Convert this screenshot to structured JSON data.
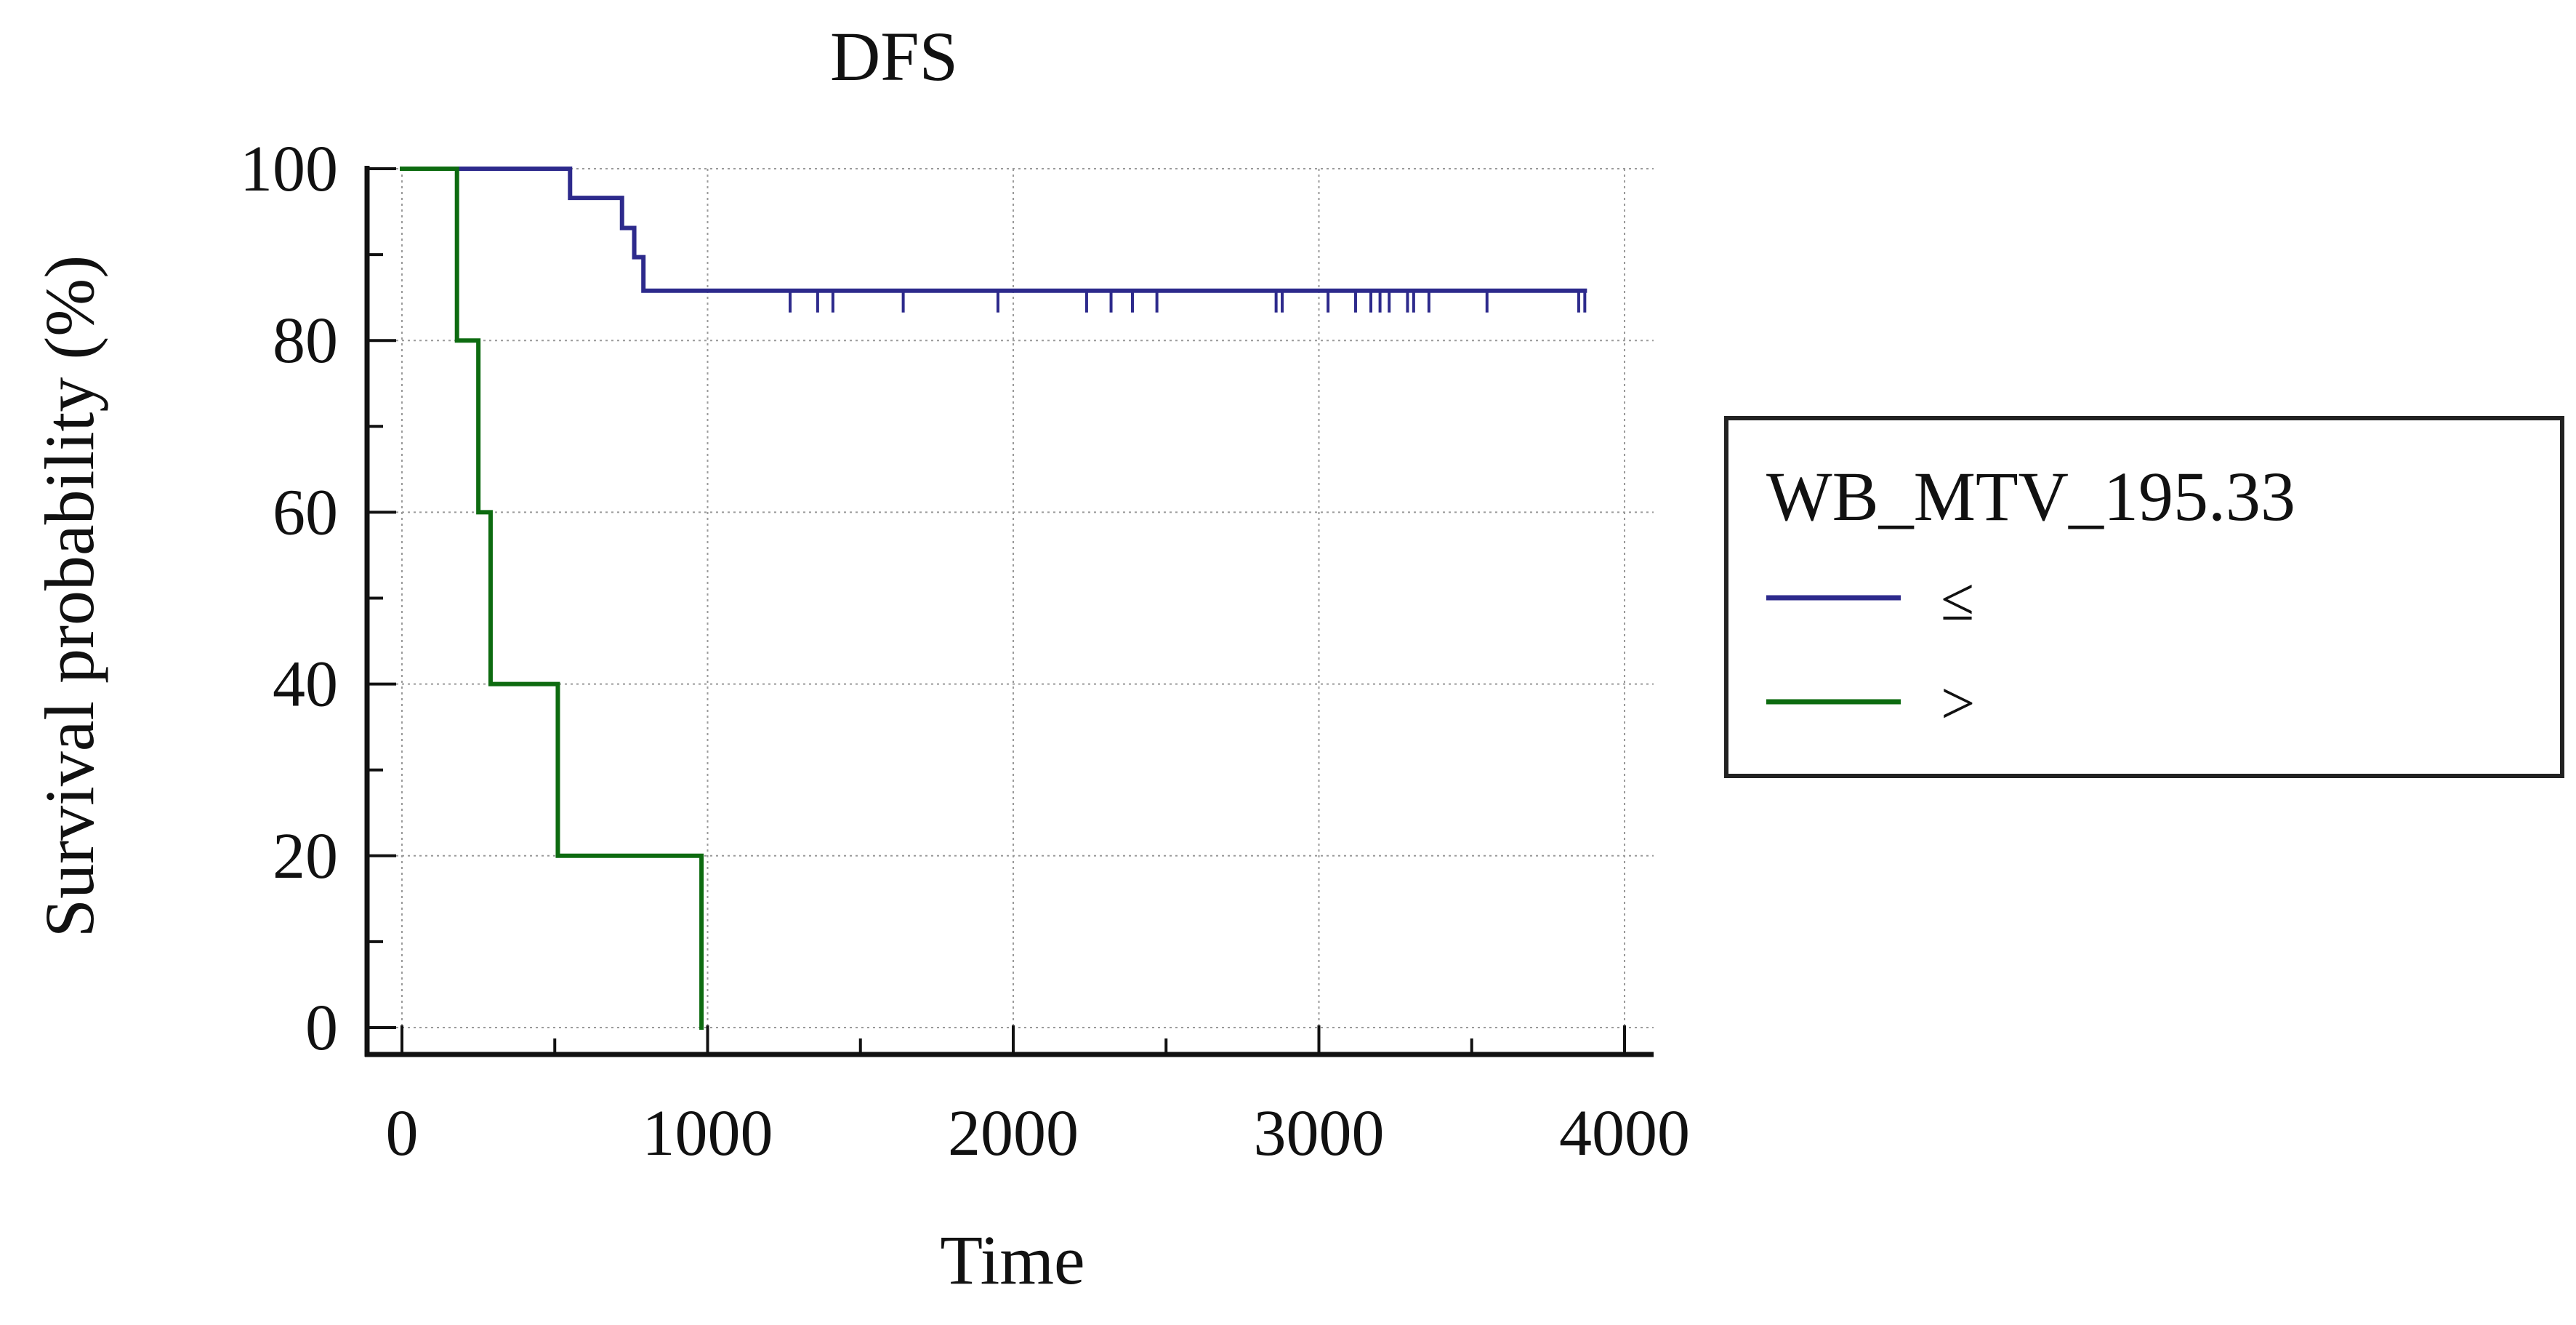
{
  "chart_data": {
    "type": "line",
    "chart_kind": "kaplan-meier",
    "title": "DFS",
    "xlabel": "Time",
    "ylabel": "Survival probability (%)",
    "xlim": [
      0,
      4000
    ],
    "ylim": [
      0,
      100
    ],
    "xticks": [
      0,
      1000,
      2000,
      3000,
      4000
    ],
    "yticks": [
      0,
      20,
      40,
      60,
      80,
      100
    ],
    "grid": true,
    "grid_style": "dotted",
    "legend": {
      "title": "WB_MTV_195.33",
      "placement": "right"
    },
    "series": [
      {
        "name": "≤",
        "color": "#2d2a8c",
        "steps": [
          {
            "x": 0,
            "y": 100
          },
          {
            "x": 550,
            "y": 96.6
          },
          {
            "x": 720,
            "y": 93.1
          },
          {
            "x": 760,
            "y": 89.7
          },
          {
            "x": 790,
            "y": 85.8
          }
        ],
        "end_x": 3870,
        "censored_x": [
          1270,
          1360,
          1410,
          1640,
          1950,
          2240,
          2320,
          2390,
          2470,
          2860,
          2880,
          3030,
          3120,
          3170,
          3200,
          3230,
          3290,
          3310,
          3360,
          3550,
          3850,
          3870
        ]
      },
      {
        "name": ">",
        "color": "#0d6b10",
        "steps": [
          {
            "x": 0,
            "y": 100
          },
          {
            "x": 180,
            "y": 80
          },
          {
            "x": 250,
            "y": 60
          },
          {
            "x": 290,
            "y": 40
          },
          {
            "x": 510,
            "y": 20
          },
          {
            "x": 980,
            "y": 0
          }
        ],
        "end_x": 980,
        "censored_x": []
      }
    ]
  }
}
